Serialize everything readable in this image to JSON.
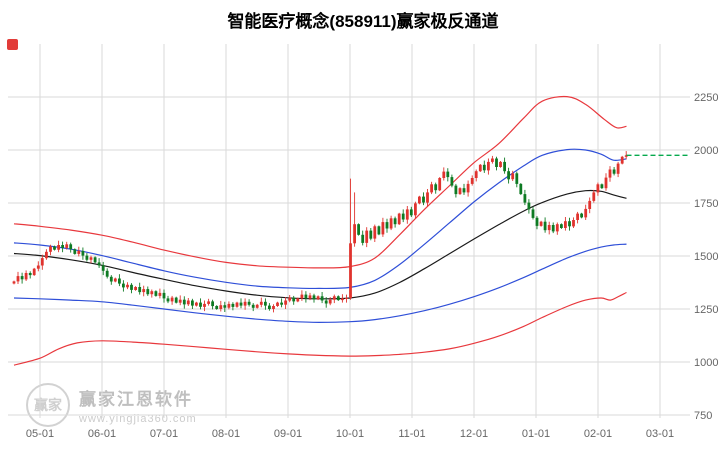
{
  "title": "智能医疗概念(858911)赢家极反通道",
  "watermark": {
    "logo_text": "赢家",
    "brand": "赢家江恩软件",
    "url": "www.yingjia360.com"
  },
  "colors": {
    "up": "#e0332e",
    "down": "#0e7a23",
    "outer_channel": "#e8383d",
    "inner_channel": "#2f4fd8",
    "middle_channel": "#1a1a1a",
    "last_price": "#06a94d",
    "grid": "#dadada",
    "axis_text": "#666666",
    "marker": "#e23c39"
  },
  "chart_data": {
    "type": "candlestick",
    "title": "智能医疗概念(858911)赢家极反通道",
    "xlabel": "",
    "ylabel": "",
    "ylim": [
      736,
      2500
    ],
    "grid": true,
    "x_axis": {
      "ticks": [
        "05-01",
        "06-01",
        "07-01",
        "08-01",
        "09-01",
        "10-01",
        "11-01",
        "12-01",
        "01-01",
        "02-01",
        "03-01"
      ]
    },
    "y_axis": {
      "ticks": [
        2250,
        2000,
        1750,
        1500,
        1250,
        1000,
        750
      ]
    },
    "candles": {
      "start_month": -0.42,
      "step_month": 0.0654,
      "first_open": 1370,
      "closes": [
        1380,
        1405,
        1390,
        1420,
        1410,
        1440,
        1455,
        1490,
        1520,
        1545,
        1530,
        1552,
        1538,
        1555,
        1532,
        1510,
        1524,
        1502,
        1482,
        1494,
        1470,
        1456,
        1430,
        1402,
        1380,
        1394,
        1370,
        1352,
        1364,
        1340,
        1354,
        1330,
        1344,
        1320,
        1334,
        1312,
        1326,
        1300,
        1286,
        1304,
        1280,
        1294,
        1272,
        1290,
        1266,
        1280,
        1260,
        1274,
        1286,
        1264,
        1250,
        1268,
        1256,
        1274,
        1260,
        1280,
        1266,
        1284,
        1270,
        1256,
        1270,
        1284,
        1266,
        1250,
        1264,
        1280,
        1270,
        1290,
        1304,
        1286,
        1300,
        1318,
        1300,
        1314,
        1296,
        1310,
        1290,
        1276,
        1294,
        1310,
        1292,
        1300,
        1302,
        1560,
        1650,
        1600,
        1562,
        1620,
        1582,
        1640,
        1602,
        1660,
        1630,
        1678,
        1650,
        1700,
        1672,
        1720,
        1692,
        1748,
        1780,
        1752,
        1800,
        1838,
        1810,
        1868,
        1898,
        1872,
        1832,
        1792,
        1820,
        1800,
        1840,
        1868,
        1900,
        1930,
        1904,
        1944,
        1960,
        1920,
        1944,
        1900,
        1862,
        1890,
        1840,
        1792,
        1752,
        1720,
        1680,
        1642,
        1662,
        1622,
        1646,
        1616,
        1650,
        1632,
        1664,
        1640,
        1670,
        1700,
        1682,
        1722,
        1760,
        1800,
        1838,
        1820,
        1870,
        1908,
        1888,
        1936,
        1968,
        1975
      ],
      "high_overrides": {
        "83": 1865,
        "84": 1800
      }
    },
    "channel_lines": [
      {
        "name": "outer-upper",
        "color_key": "outer_channel",
        "points": [
          [
            -0.42,
            1652
          ],
          [
            0,
            1640
          ],
          [
            0.5,
            1622
          ],
          [
            1,
            1598
          ],
          [
            1.5,
            1565
          ],
          [
            2,
            1528
          ],
          [
            2.5,
            1496
          ],
          [
            3,
            1470
          ],
          [
            3.5,
            1454
          ],
          [
            4,
            1447
          ],
          [
            4.5,
            1444
          ],
          [
            5,
            1450
          ],
          [
            5.4,
            1490
          ],
          [
            5.8,
            1600
          ],
          [
            6.2,
            1720
          ],
          [
            6.6,
            1830
          ],
          [
            7,
            1940
          ],
          [
            7.4,
            2030
          ],
          [
            7.8,
            2150
          ],
          [
            8.1,
            2230
          ],
          [
            8.5,
            2252
          ],
          [
            8.8,
            2215
          ],
          [
            9.1,
            2145
          ],
          [
            9.3,
            2105
          ],
          [
            9.46,
            2112
          ]
        ]
      },
      {
        "name": "inner-upper",
        "color_key": "inner_channel",
        "points": [
          [
            -0.42,
            1562
          ],
          [
            0,
            1552
          ],
          [
            0.5,
            1532
          ],
          [
            1,
            1502
          ],
          [
            1.5,
            1466
          ],
          [
            2,
            1430
          ],
          [
            2.5,
            1400
          ],
          [
            3,
            1376
          ],
          [
            3.5,
            1358
          ],
          [
            4,
            1350
          ],
          [
            4.5,
            1347
          ],
          [
            5,
            1352
          ],
          [
            5.4,
            1385
          ],
          [
            5.8,
            1460
          ],
          [
            6.2,
            1555
          ],
          [
            6.6,
            1655
          ],
          [
            7,
            1755
          ],
          [
            7.4,
            1845
          ],
          [
            7.8,
            1925
          ],
          [
            8.1,
            1975
          ],
          [
            8.5,
            2002
          ],
          [
            8.8,
            2000
          ],
          [
            9.05,
            1980
          ],
          [
            9.25,
            1952
          ],
          [
            9.46,
            1958
          ]
        ]
      },
      {
        "name": "middle",
        "color_key": "middle_channel",
        "points": [
          [
            -0.42,
            1512
          ],
          [
            0,
            1502
          ],
          [
            0.5,
            1482
          ],
          [
            1,
            1456
          ],
          [
            1.5,
            1422
          ],
          [
            2,
            1390
          ],
          [
            2.5,
            1360
          ],
          [
            3,
            1335
          ],
          [
            3.5,
            1315
          ],
          [
            4,
            1303
          ],
          [
            4.5,
            1298
          ],
          [
            5,
            1302
          ],
          [
            5.4,
            1325
          ],
          [
            5.8,
            1375
          ],
          [
            6.2,
            1440
          ],
          [
            6.6,
            1510
          ],
          [
            7,
            1580
          ],
          [
            7.4,
            1648
          ],
          [
            7.8,
            1712
          ],
          [
            8.1,
            1752
          ],
          [
            8.5,
            1792
          ],
          [
            8.8,
            1808
          ],
          [
            9.05,
            1805
          ],
          [
            9.25,
            1788
          ],
          [
            9.46,
            1772
          ]
        ]
      },
      {
        "name": "inner-lower",
        "color_key": "inner_channel",
        "points": [
          [
            -0.42,
            1302
          ],
          [
            0,
            1298
          ],
          [
            0.5,
            1292
          ],
          [
            1,
            1284
          ],
          [
            1.5,
            1268
          ],
          [
            2,
            1250
          ],
          [
            2.5,
            1232
          ],
          [
            3,
            1216
          ],
          [
            3.5,
            1202
          ],
          [
            4,
            1192
          ],
          [
            4.5,
            1187
          ],
          [
            5,
            1190
          ],
          [
            5.4,
            1200
          ],
          [
            5.8,
            1218
          ],
          [
            6.2,
            1242
          ],
          [
            6.6,
            1272
          ],
          [
            7,
            1308
          ],
          [
            7.4,
            1350
          ],
          [
            7.8,
            1398
          ],
          [
            8.1,
            1438
          ],
          [
            8.5,
            1490
          ],
          [
            8.8,
            1522
          ],
          [
            9.05,
            1542
          ],
          [
            9.25,
            1552
          ],
          [
            9.46,
            1556
          ]
        ]
      },
      {
        "name": "outer-lower",
        "color_key": "outer_channel",
        "points": [
          [
            -0.42,
            985
          ],
          [
            0,
            1018
          ],
          [
            0.3,
            1062
          ],
          [
            0.6,
            1090
          ],
          [
            1,
            1100
          ],
          [
            1.5,
            1094
          ],
          [
            2,
            1084
          ],
          [
            2.5,
            1072
          ],
          [
            3,
            1060
          ],
          [
            3.5,
            1048
          ],
          [
            4,
            1038
          ],
          [
            4.5,
            1031
          ],
          [
            5,
            1028
          ],
          [
            5.4,
            1030
          ],
          [
            5.8,
            1036
          ],
          [
            6.2,
            1046
          ],
          [
            6.6,
            1062
          ],
          [
            7,
            1088
          ],
          [
            7.4,
            1122
          ],
          [
            7.8,
            1168
          ],
          [
            8.1,
            1210
          ],
          [
            8.5,
            1262
          ],
          [
            8.8,
            1292
          ],
          [
            9.05,
            1302
          ],
          [
            9.2,
            1292
          ],
          [
            9.35,
            1312
          ],
          [
            9.46,
            1328
          ]
        ]
      }
    ],
    "last_price_line": {
      "price": 1975,
      "start_month": 9.46
    }
  }
}
